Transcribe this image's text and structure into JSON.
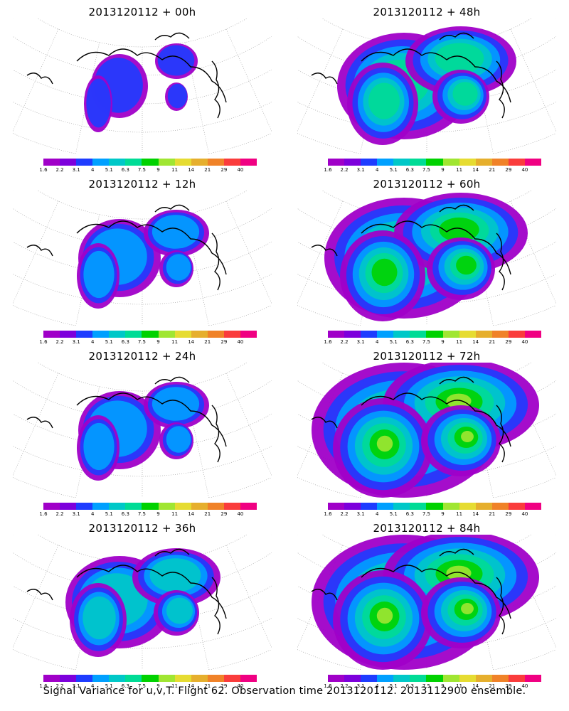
{
  "footer": "Signal Variance for u,v,T. Flight 62. Observation time 2013120112. 2013112900 ensemble.",
  "chart_data": {
    "type": "heatmap",
    "colorbar": {
      "labels": [
        "1.6",
        "2.2",
        "3.1",
        "4",
        "5.1",
        "6.3",
        "7.5",
        "9",
        "11",
        "14",
        "21",
        "29",
        "40"
      ],
      "colors": [
        "#a000c8",
        "#7d00dc",
        "#1e3cff",
        "#00a0ff",
        "#00c8c8",
        "#00dc96",
        "#00d200",
        "#a0e632",
        "#e6dc32",
        "#e6af2d",
        "#f08228",
        "#fa3c3c",
        "#f00082"
      ]
    },
    "panels": [
      {
        "title": "2013120112 + 00h",
        "level": 0
      },
      {
        "title": "2013120112 + 48h",
        "level": 3
      },
      {
        "title": "2013120112 + 12h",
        "level": 1
      },
      {
        "title": "2013120112 + 60h",
        "level": 4
      },
      {
        "title": "2013120112 + 24h",
        "level": 1
      },
      {
        "title": "2013120112 + 72h",
        "level": 5
      },
      {
        "title": "2013120112 + 36h",
        "level": 2
      },
      {
        "title": "2013120112 + 84h",
        "level": 5
      }
    ]
  }
}
